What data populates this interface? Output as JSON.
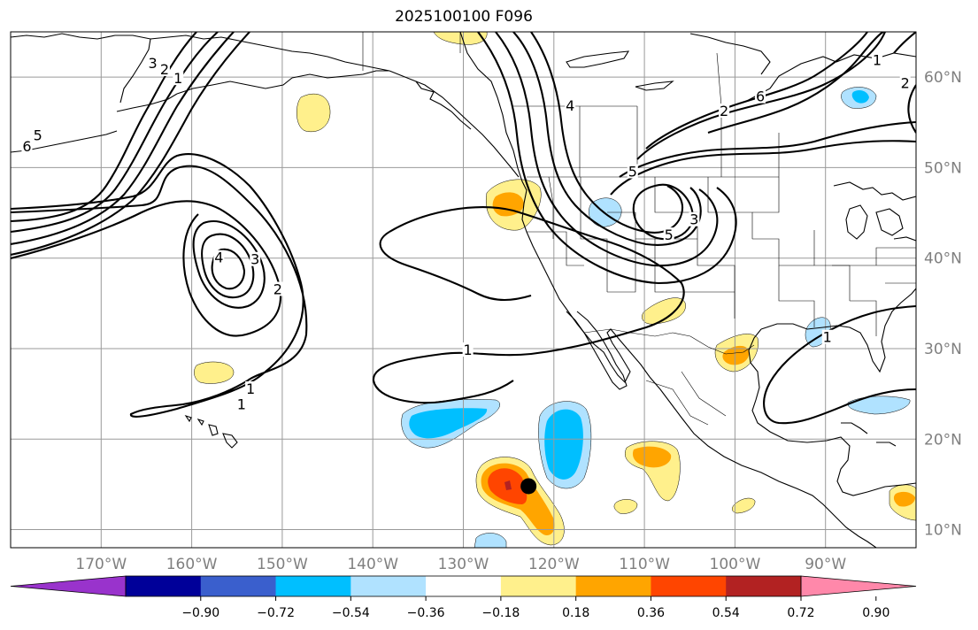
{
  "title": "2025100100 F096",
  "map": {
    "projection": "plate-carree",
    "lon_range": [
      -180,
      -80
    ],
    "lat_range": [
      8,
      65
    ],
    "lon_ticks": [
      {
        "value": -170,
        "label": "170°W"
      },
      {
        "value": -160,
        "label": "160°W"
      },
      {
        "value": -150,
        "label": "150°W"
      },
      {
        "value": -140,
        "label": "140°W"
      },
      {
        "value": -130,
        "label": "130°W"
      },
      {
        "value": -120,
        "label": "120°W"
      },
      {
        "value": -110,
        "label": "110°W"
      },
      {
        "value": -100,
        "label": "100°W"
      },
      {
        "value": -90,
        "label": "90°W"
      }
    ],
    "lat_ticks": [
      {
        "value": 10,
        "label": "10°N"
      },
      {
        "value": 20,
        "label": "20°N"
      },
      {
        "value": 30,
        "label": "30°N"
      },
      {
        "value": 40,
        "label": "40°N"
      },
      {
        "value": 50,
        "label": "50°N"
      },
      {
        "value": 60,
        "label": "60°N"
      }
    ],
    "grid": true,
    "storm_marker": {
      "lon": -122.8,
      "lat": 14.8
    },
    "contour_labels": [
      {
        "text": "1",
        "lon": -154.5,
        "lat": 23.8
      },
      {
        "text": "1",
        "lon": -153.5,
        "lat": 25.5
      },
      {
        "text": "2",
        "lon": -150.5,
        "lat": 36.5
      },
      {
        "text": "3",
        "lon": -153,
        "lat": 39.8
      },
      {
        "text": "4",
        "lon": -157,
        "lat": 40
      },
      {
        "text": "1",
        "lon": -129.5,
        "lat": 29.8
      },
      {
        "text": "1",
        "lon": -161.5,
        "lat": 59.8
      },
      {
        "text": "2",
        "lon": -163,
        "lat": 60.8
      },
      {
        "text": "3",
        "lon": -164.3,
        "lat": 61.5
      },
      {
        "text": "5",
        "lon": -177,
        "lat": 53.5
      },
      {
        "text": "6",
        "lon": -178.2,
        "lat": 52.3
      },
      {
        "text": "4",
        "lon": -118.2,
        "lat": 56.8
      },
      {
        "text": "6",
        "lon": -97.2,
        "lat": 57.8
      },
      {
        "text": "2",
        "lon": -101.2,
        "lat": 56.2
      },
      {
        "text": "5",
        "lon": -111.3,
        "lat": 49.5
      },
      {
        "text": "5",
        "lon": -107.3,
        "lat": 42.5
      },
      {
        "text": "3",
        "lon": -104.5,
        "lat": 44.2
      },
      {
        "text": "1",
        "lon": -84.3,
        "lat": 61.8
      },
      {
        "text": "2",
        "lon": -81.2,
        "lat": 59.3
      },
      {
        "text": "1",
        "lon": -89.8,
        "lat": 31.2
      }
    ]
  },
  "colorbar": {
    "ticks": [
      "−0.90",
      "−0.72",
      "−0.54",
      "−0.36",
      "−0.18",
      "0.18",
      "0.36",
      "0.54",
      "0.72",
      "0.90"
    ],
    "bins": [
      {
        "color": "#9933cc",
        "extend": "min"
      },
      {
        "color": "#000099"
      },
      {
        "color": "#3a5fcd"
      },
      {
        "color": "#00bfff"
      },
      {
        "color": "#b0e2ff"
      },
      {
        "color": "#ffffff"
      },
      {
        "color": "#fff08c"
      },
      {
        "color": "#ffa500"
      },
      {
        "color": "#ff4500"
      },
      {
        "color": "#b22222"
      },
      {
        "color": "#ff88aa",
        "extend": "max"
      }
    ]
  }
}
